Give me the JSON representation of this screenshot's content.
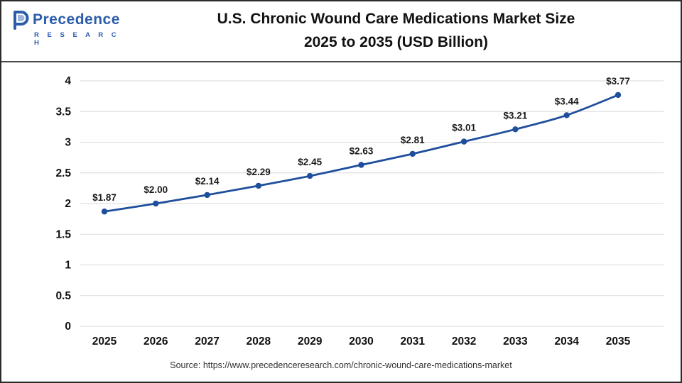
{
  "logo": {
    "name": "Precedence",
    "subname": "R E S E A R C H"
  },
  "header": {
    "title_line1": "U.S. Chronic Wound Care Medications Market Size",
    "title_line2": "2025 to 2035 (USD Billion)"
  },
  "source": "Source: https://www.precedenceresearch.com/chronic-wound-care-medications-market",
  "chart_data": {
    "type": "line",
    "title": "U.S. Chronic Wound Care Medications Market Size 2025 to 2035 (USD Billion)",
    "categories": [
      "2025",
      "2026",
      "2027",
      "2028",
      "2029",
      "2030",
      "2031",
      "2032",
      "2033",
      "2034",
      "2035"
    ],
    "values": [
      1.87,
      2.0,
      2.14,
      2.29,
      2.45,
      2.63,
      2.81,
      3.01,
      3.21,
      3.44,
      3.77
    ],
    "point_labels": [
      "$1.87",
      "$2.00",
      "$2.14",
      "$2.29",
      "$2.45",
      "$2.63",
      "$2.81",
      "$3.01",
      "$3.21",
      "$3.44",
      "$3.77"
    ],
    "xlabel": "",
    "ylabel": "",
    "ylim": [
      0,
      4
    ],
    "yticks": [
      0,
      0.5,
      1,
      1.5,
      2,
      2.5,
      3,
      3.5,
      4
    ],
    "grid": true,
    "legend": "none",
    "line_color": "#1f4e9c",
    "marker_color": "#1f4e9c",
    "grid_color": "#d9d9d9",
    "axis_label_color": "#111111",
    "point_label_color": "#1a1a1a"
  }
}
